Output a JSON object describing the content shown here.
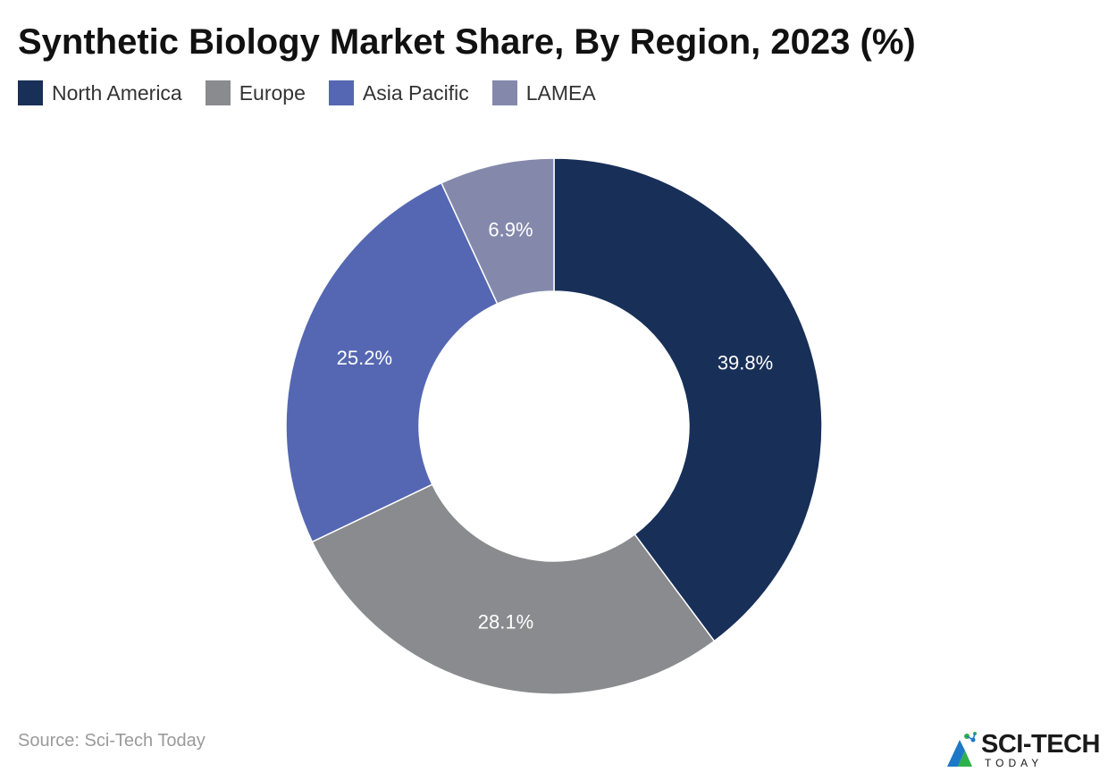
{
  "chart_data": {
    "type": "pie",
    "variant": "donut",
    "title": "Synthetic Biology Market Share, By Region, 2023 (%)",
    "categories": [
      "North America",
      "Europe",
      "Asia Pacific",
      "LAMEA"
    ],
    "values": [
      39.8,
      28.1,
      25.2,
      6.9
    ],
    "labels": [
      "39.8%",
      "28.1%",
      "25.2%",
      "6.9%"
    ],
    "colors": [
      "#182f58",
      "#8a8b8e",
      "#5567b2",
      "#8489ac"
    ],
    "legend_position": "top-left",
    "start_angle": "12 o'clock",
    "direction": "clockwise"
  },
  "source": "Source: Sci-Tech Today",
  "logo": {
    "main": "SCI-TECH",
    "sub": "TODAY",
    "colors": [
      "#1e78c8",
      "#2eb04a"
    ]
  }
}
